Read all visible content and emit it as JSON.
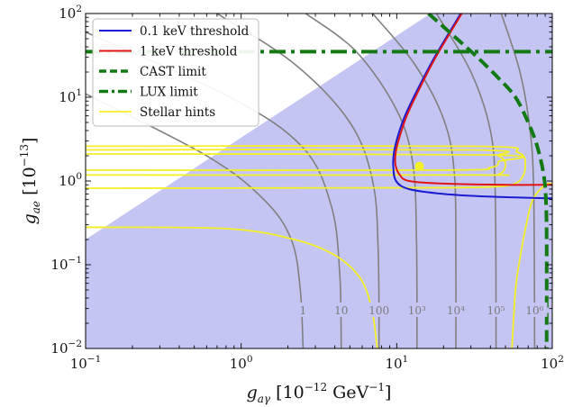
{
  "chart_data": {
    "type": "line",
    "xscale": "log",
    "yscale": "log",
    "xlim": [
      0.1,
      100
    ],
    "ylim": [
      0.01,
      100
    ],
    "xlabel": {
      "symbol": "g",
      "subscript": "aγ",
      "unit_prefix": "[10",
      "unit_exp": "−12",
      "unit_suffix": " GeV",
      "unit_suffix_exp": "−1",
      "close": "]"
    },
    "ylabel": {
      "symbol": "g",
      "subscript": "ae",
      "unit_prefix": "[10",
      "unit_exp": "−13",
      "close": "]"
    },
    "xticks": [
      {
        "value": 0.1,
        "base": "10",
        "exp": "−1"
      },
      {
        "value": 1,
        "base": "10",
        "exp": "0"
      },
      {
        "value": 10,
        "base": "10",
        "exp": "1"
      },
      {
        "value": 100,
        "base": "10",
        "exp": "2"
      }
    ],
    "yticks": [
      {
        "value": 0.01,
        "base": "10",
        "exp": "−2"
      },
      {
        "value": 0.1,
        "base": "10",
        "exp": "−1"
      },
      {
        "value": 1,
        "base": "10",
        "exp": "0"
      },
      {
        "value": 10,
        "base": "10",
        "exp": "1"
      },
      {
        "value": 100,
        "base": "10",
        "exp": "2"
      }
    ],
    "excluded_region": {
      "color": "#c5c5f4",
      "points": [
        [
          0.1,
          0.2
        ],
        [
          0.1,
          0.01
        ],
        [
          100,
          0.01
        ],
        [
          100,
          100
        ],
        [
          16.5,
          100
        ]
      ]
    },
    "series": [
      {
        "name": "0.1 keV threshold",
        "color": "#1a1ad0",
        "width": 2,
        "dash": "",
        "points": [
          [
            25.8,
            100
          ],
          [
            17.5,
            30
          ],
          [
            13.5,
            12
          ],
          [
            11.3,
            6
          ],
          [
            10.2,
            3.5
          ],
          [
            9.6,
            2.2
          ],
          [
            9.5,
            1.5
          ],
          [
            9.9,
            1.0
          ],
          [
            12,
            0.8
          ],
          [
            20,
            0.7
          ],
          [
            40,
            0.65
          ],
          [
            100,
            0.62
          ]
        ]
      },
      {
        "name": "1 keV threshold",
        "color": "#e01515",
        "width": 2,
        "dash": "",
        "points": [
          [
            26.2,
            100
          ],
          [
            17.8,
            30
          ],
          [
            13.8,
            12
          ],
          [
            11.6,
            6
          ],
          [
            10.5,
            3.5
          ],
          [
            9.9,
            2.3
          ],
          [
            9.8,
            1.6
          ],
          [
            10.4,
            1.2
          ],
          [
            12,
            1.0
          ],
          [
            20,
            0.93
          ],
          [
            50,
            0.9
          ],
          [
            100,
            0.9
          ]
        ]
      },
      {
        "name": "CAST limit",
        "color": "#137a13",
        "width": 4,
        "dash": "13,6",
        "points": [
          [
            16,
            100
          ],
          [
            23,
            55
          ],
          [
            33,
            30
          ],
          [
            45,
            17
          ],
          [
            58,
            10
          ],
          [
            70,
            5
          ],
          [
            80,
            2.6
          ],
          [
            88,
            1.2
          ],
          [
            91,
            0.6
          ],
          [
            92,
            0.2
          ],
          [
            92,
            0.01
          ]
        ]
      },
      {
        "name": "LUX limit",
        "color": "#137a13",
        "width": 4,
        "dash": "18,6,4,6",
        "points": [
          [
            0.1,
            35
          ],
          [
            100,
            35
          ]
        ]
      },
      {
        "name": "Stellar hints",
        "color": "#f5ef27",
        "width": 1.8,
        "dash": "",
        "curves": [
          [
            [
              0.1,
              2.6
            ],
            [
              30,
              2.6
            ],
            [
              60,
              2.2
            ],
            [
              67,
              1.5
            ],
            [
              60,
              0.97
            ],
            [
              40,
              0.85
            ],
            [
              10,
              0.83
            ],
            [
              0.1,
              0.82
            ]
          ],
          [
            [
              0.1,
              2.35
            ],
            [
              30,
              2.35
            ],
            [
              45,
              2.0
            ],
            [
              50,
              1.55
            ],
            [
              45,
              1.2
            ],
            [
              30,
              1.18
            ],
            [
              0.1,
              1.18
            ]
          ],
          [
            [
              0.1,
              2.1
            ],
            [
              40,
              2.05
            ],
            [
              45,
              1.7
            ],
            [
              40,
              1.45
            ],
            [
              20,
              1.35
            ],
            [
              0.1,
              1.35
            ]
          ],
          [
            [
              0.1,
              0.28
            ],
            [
              0.8,
              0.27
            ],
            [
              2.2,
              0.2
            ],
            [
              4,
              0.13
            ],
            [
              5.8,
              0.07
            ],
            [
              6.9,
              0.03
            ],
            [
              7.5,
              0.01
            ]
          ],
          [
            [
              55,
              0.01
            ],
            [
              58,
              0.05
            ],
            [
              62,
              0.12
            ],
            [
              68,
              0.3
            ],
            [
              75,
              0.6
            ],
            [
              90,
              0.9
            ],
            [
              100,
              0.93
            ]
          ]
        ]
      }
    ],
    "best_fit_point": {
      "x": 14,
      "y": 1.5,
      "color": "#f5ef27"
    },
    "contours": [
      {
        "label": "1",
        "points": [
          [
            0.1,
            11
          ],
          [
            0.6,
            2
          ],
          [
            1.4,
            0.6
          ],
          [
            2.1,
            0.2
          ],
          [
            2.4,
            0.05
          ],
          [
            2.5,
            0.01
          ]
        ]
      },
      {
        "label": "10",
        "points": [
          [
            0.1,
            60
          ],
          [
            0.85,
            10
          ],
          [
            2.5,
            2.5
          ],
          [
            3.8,
            0.5
          ],
          [
            4.3,
            0.08
          ],
          [
            4.4,
            0.01
          ]
        ]
      },
      {
        "label": "100",
        "points": [
          [
            0.7,
            100
          ],
          [
            2.2,
            25
          ],
          [
            5,
            5
          ],
          [
            7,
            1
          ],
          [
            7.6,
            0.15
          ],
          [
            7.7,
            0.01
          ]
        ]
      },
      {
        "label": "10³",
        "points": [
          [
            2.6,
            100
          ],
          [
            5.5,
            35
          ],
          [
            10,
            7
          ],
          [
            12.7,
            1.6
          ],
          [
            13.4,
            0.2
          ],
          [
            13.5,
            0.01
          ]
        ]
      },
      {
        "label": "10⁴",
        "points": [
          [
            7,
            100
          ],
          [
            13,
            25
          ],
          [
            20,
            5.5
          ],
          [
            23.5,
            1.2
          ],
          [
            24,
            0.1
          ],
          [
            24,
            0.01
          ]
        ]
      },
      {
        "label": "10⁵",
        "points": [
          [
            18,
            100
          ],
          [
            30,
            20
          ],
          [
            40,
            4
          ],
          [
            43,
            0.7
          ],
          [
            43.5,
            0.01
          ]
        ]
      },
      {
        "label": "10⁶",
        "points": [
          [
            47,
            100
          ],
          [
            62,
            20
          ],
          [
            72,
            4
          ],
          [
            76,
            0.7
          ],
          [
            77,
            0.01
          ]
        ]
      }
    ],
    "contour_label_y": 0.027,
    "contour_color": "#808080",
    "legend": {
      "position": "top-left"
    },
    "grid": false
  }
}
